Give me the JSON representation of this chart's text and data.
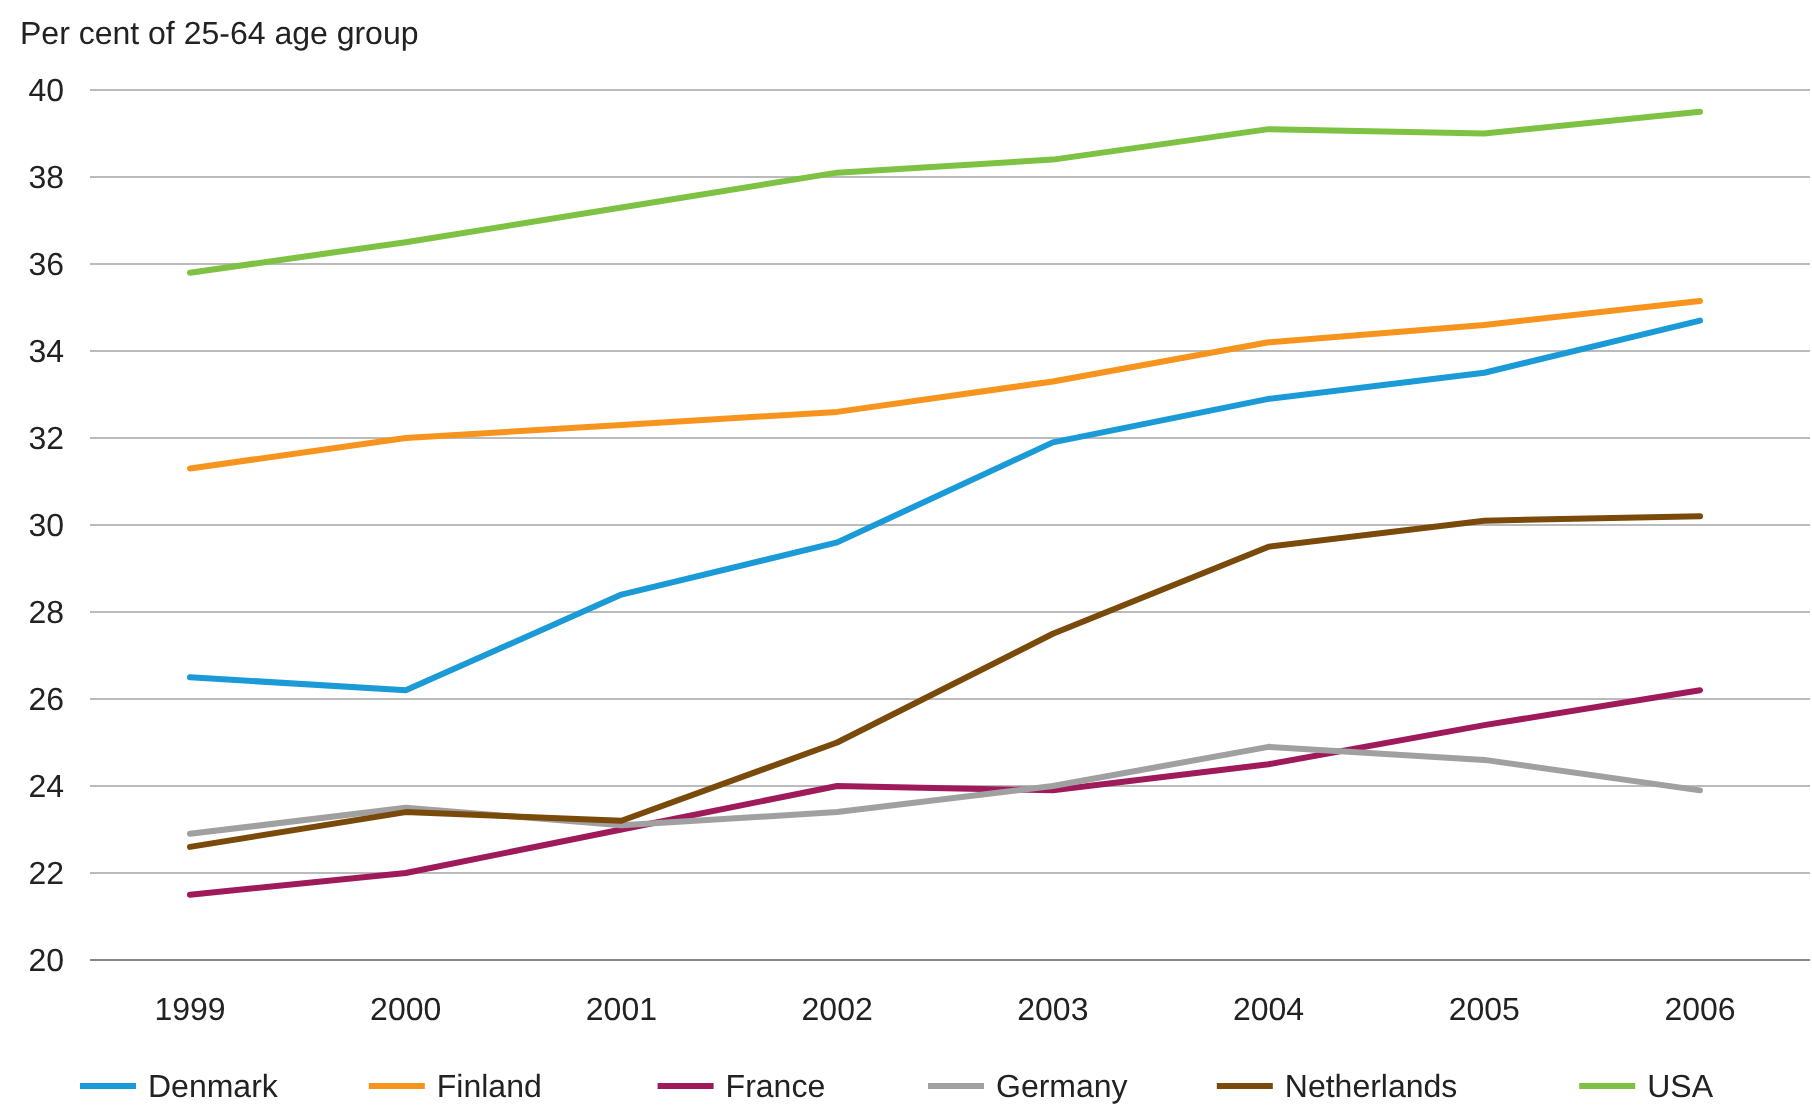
{
  "chart_data": {
    "type": "line",
    "ylabel": "Per cent of 25-64 age group",
    "categories": [
      "1999",
      "2000",
      "2001",
      "2002",
      "2003",
      "2004",
      "2005",
      "2006"
    ],
    "ylim": [
      20,
      40
    ],
    "yticks": [
      20,
      22,
      24,
      26,
      28,
      30,
      32,
      34,
      36,
      38,
      40
    ],
    "grid": "y",
    "legend": "bottom",
    "marker": "none",
    "line_style": "solid",
    "series": [
      {
        "name": "Denmark",
        "color": "#1a9ad6",
        "values": [
          26.5,
          26.2,
          28.4,
          29.6,
          31.9,
          32.9,
          33.5,
          34.7
        ]
      },
      {
        "name": "Finland",
        "color": "#f7941d",
        "values": [
          31.3,
          32.0,
          32.3,
          32.6,
          33.3,
          34.2,
          34.6,
          35.15
        ]
      },
      {
        "name": "France",
        "color": "#9e1a5a",
        "values": [
          21.5,
          22.0,
          23.0,
          24.0,
          23.9,
          24.5,
          25.4,
          26.2
        ]
      },
      {
        "name": "Germany",
        "color": "#a0a0a0",
        "values": [
          22.9,
          23.5,
          23.1,
          23.4,
          24.0,
          24.9,
          24.6,
          23.9
        ]
      },
      {
        "name": "Netherlands",
        "color": "#7a4a0a",
        "values": [
          22.6,
          23.4,
          23.2,
          25.0,
          27.5,
          29.5,
          30.1,
          30.2
        ]
      },
      {
        "name": "USA",
        "color": "#7dc242",
        "values": [
          35.8,
          36.5,
          37.3,
          38.1,
          38.4,
          39.1,
          39.0,
          39.5
        ]
      }
    ]
  }
}
